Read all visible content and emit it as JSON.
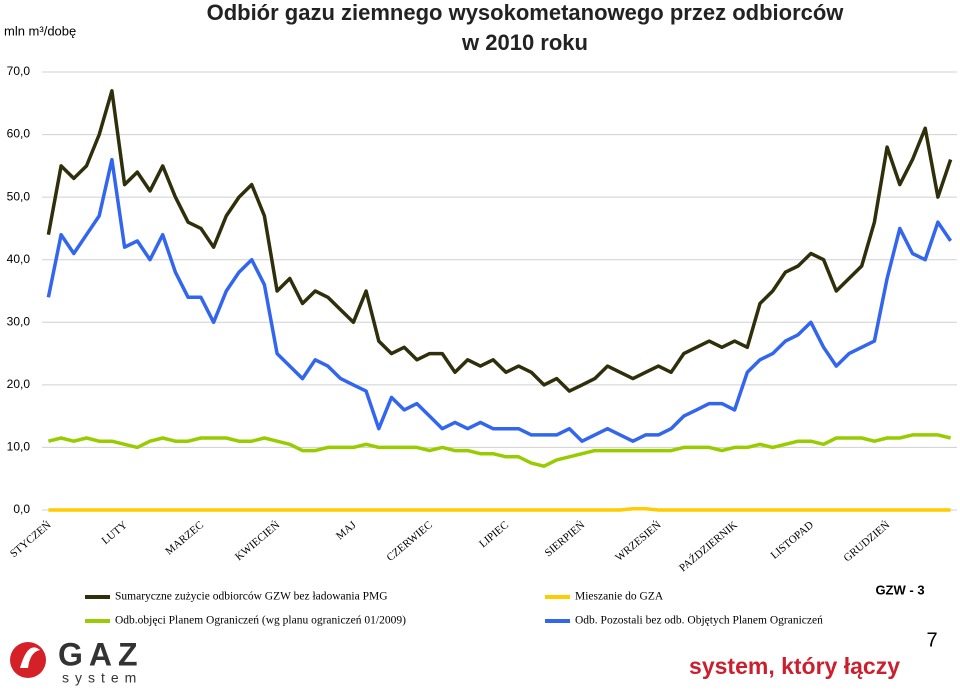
{
  "chart_data": {
    "type": "line",
    "title": [
      "Odbiór gazu ziemnego wysokometanowego przez odbiorców",
      "w 2010 roku"
    ],
    "y_label": "mln m³/dobę",
    "categories": [
      "STYCZEŃ",
      null,
      null,
      null,
      null,
      null,
      "LUTY",
      null,
      null,
      null,
      null,
      null,
      "MARZEC",
      null,
      null,
      null,
      null,
      null,
      "KWIECIEŃ",
      null,
      null,
      null,
      null,
      null,
      "MAJ",
      null,
      null,
      null,
      null,
      null,
      "CZERWIEC",
      null,
      null,
      null,
      null,
      null,
      "LIPIEC",
      null,
      null,
      null,
      null,
      null,
      "SIERPIEŃ",
      null,
      null,
      null,
      null,
      null,
      "WRZESIEŃ",
      null,
      null,
      null,
      null,
      null,
      "PAŹDZIERNIK",
      null,
      null,
      null,
      null,
      null,
      "LISTOPAD",
      null,
      null,
      null,
      null,
      null,
      "GRUDZIEŃ",
      null,
      null,
      null,
      null,
      null
    ],
    "ylim": [
      0,
      70
    ],
    "yticks": [
      {
        "value": 0,
        "label": "0,0"
      },
      {
        "value": 10,
        "label": "10,0"
      },
      {
        "value": 20,
        "label": "20,0"
      },
      {
        "value": 30,
        "label": "30,0"
      },
      {
        "value": 40,
        "label": "40,0"
      },
      {
        "value": 50,
        "label": "50,0"
      },
      {
        "value": 60,
        "label": "60,0"
      },
      {
        "value": 70,
        "label": "70,0"
      }
    ],
    "grid": true,
    "series": [
      {
        "name": "Sumaryczne zużycie odbiorców GZW bez ładowania PMG",
        "color": "#2f2f0c",
        "values": [
          44,
          55,
          53,
          55,
          60,
          67,
          52,
          54,
          51,
          55,
          50,
          46,
          45,
          42,
          47,
          50,
          52,
          47,
          35,
          37,
          33,
          35,
          34,
          32,
          30,
          35,
          27,
          25,
          26,
          24,
          25,
          25,
          22,
          24,
          23,
          24,
          22,
          23,
          22,
          20,
          21,
          19,
          20,
          21,
          23,
          22,
          21,
          22,
          23,
          22,
          25,
          26,
          27,
          26,
          27,
          26,
          33,
          35,
          38,
          39,
          41,
          40,
          35,
          37,
          39,
          46,
          58,
          52,
          56,
          61,
          50,
          56
        ]
      },
      {
        "name": "Mieszanie do GZA",
        "color": "#ffcc00",
        "values": [
          0,
          0,
          0,
          0,
          0,
          0,
          0,
          0,
          0,
          0,
          0,
          0,
          0,
          0,
          0,
          0,
          0,
          0,
          0,
          0,
          0,
          0,
          0,
          0,
          0,
          0,
          0,
          0,
          0,
          0,
          0,
          0,
          0,
          0,
          0,
          0,
          0,
          0,
          0,
          0,
          0,
          0,
          0,
          0,
          0,
          0,
          0.2,
          0.2,
          0,
          0,
          0,
          0,
          0,
          0,
          0,
          0,
          0,
          0,
          0,
          0,
          0,
          0,
          0,
          0,
          0,
          0,
          0,
          0,
          0,
          0,
          0,
          0
        ]
      },
      {
        "name": "Odb.objęci Planem Ograniczeń (wg planu ograniczeń 01/2009)",
        "color": "#99cc00",
        "values": [
          11,
          11.5,
          11,
          11.5,
          11,
          11,
          10.5,
          10,
          11,
          11.5,
          11,
          11,
          11.5,
          11.5,
          11.5,
          11,
          11,
          11.5,
          11,
          10.5,
          9.5,
          9.5,
          10,
          10,
          10,
          10.5,
          10,
          10,
          10,
          10,
          9.5,
          10,
          9.5,
          9.5,
          9,
          9,
          8.5,
          8.5,
          7.5,
          7,
          8,
          8.5,
          9,
          9.5,
          9.5,
          9.5,
          9.5,
          9.5,
          9.5,
          9.5,
          10,
          10,
          10,
          9.5,
          10,
          10,
          10.5,
          10,
          10.5,
          11,
          11,
          10.5,
          11.5,
          11.5,
          11.5,
          11,
          11.5,
          11.5,
          12,
          12,
          12,
          11.5
        ]
      },
      {
        "name": "Odb. Pozostali bez odb. Objętych Planem Ograniczeń",
        "color": "#3366ee",
        "values": [
          34,
          44,
          41,
          44,
          47,
          56,
          42,
          43,
          40,
          44,
          38,
          34,
          34,
          30,
          35,
          38,
          40,
          36,
          25,
          23,
          21,
          24,
          23,
          21,
          20,
          19,
          13,
          18,
          16,
          17,
          15,
          13,
          14,
          13,
          14,
          13,
          13,
          13,
          12,
          12,
          12,
          13,
          11,
          12,
          13,
          12,
          11,
          12,
          12,
          13,
          15,
          16,
          17,
          17,
          16,
          22,
          24,
          25,
          27,
          28,
          30,
          26,
          23,
          25,
          26,
          27,
          37,
          45,
          41,
          40,
          46,
          43
        ]
      }
    ]
  },
  "badge": "GZW - 3",
  "page_number": "7",
  "slogan": "system, który łączy",
  "logo": {
    "mark": "GAZ",
    "text": "system"
  }
}
